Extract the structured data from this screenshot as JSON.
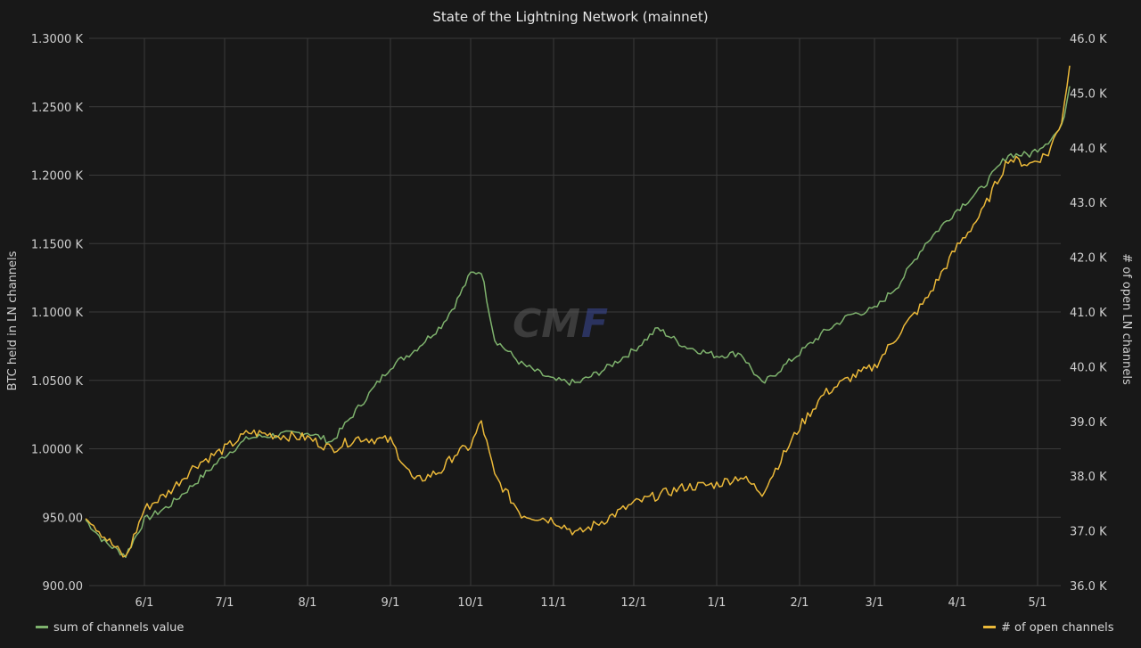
{
  "chart_data": {
    "type": "line",
    "title": "State of the Lightning Network (mainnet)",
    "x_ticks": [
      "6/1",
      "7/1",
      "8/1",
      "9/1",
      "10/1",
      "11/1",
      "12/1",
      "1/1",
      "2/1",
      "3/1",
      "4/1",
      "5/1"
    ],
    "x_range": [
      "5/10",
      "5/17"
    ],
    "y_left": {
      "label": "BTC held in LN channels",
      "ticks": [
        "900.00",
        "950.00",
        "1.0000 K",
        "1.0500 K",
        "1.1000 K",
        "1.1500 K",
        "1.2000 K",
        "1.2500 K",
        "1.3000 K"
      ],
      "range": [
        900,
        1300
      ]
    },
    "y_right": {
      "label": "# of open LN channels",
      "ticks": [
        "36.0 K",
        "37.0 K",
        "38.0 K",
        "39.0 K",
        "40.0 K",
        "41.0 K",
        "42.0 K",
        "43.0 K",
        "44.0 K",
        "45.0 K",
        "46.0 K"
      ],
      "range": [
        36000,
        46000
      ]
    },
    "legend_placement": "bottom",
    "series": [
      {
        "name": "sum of channels value",
        "axis": "left",
        "color": "#7eb26d",
        "x": [
          "5/10",
          "5/17",
          "5/25",
          "6/1",
          "6/10",
          "6/20",
          "7/1",
          "7/10",
          "7/20",
          "8/1",
          "8/10",
          "8/20",
          "9/1",
          "9/10",
          "9/20",
          "9/25",
          "10/1",
          "10/5",
          "10/10",
          "10/20",
          "11/1",
          "11/10",
          "11/20",
          "12/1",
          "12/10",
          "12/20",
          "1/1",
          "1/10",
          "1/18",
          "2/1",
          "2/10",
          "2/20",
          "3/1",
          "3/10",
          "3/20",
          "4/1",
          "4/10",
          "4/20",
          "4/28",
          "5/5",
          "5/10",
          "5/13"
        ],
        "values": [
          948,
          932,
          922,
          948,
          958,
          975,
          995,
          1008,
          1010,
          1012,
          1005,
          1030,
          1060,
          1072,
          1090,
          1105,
          1128,
          1130,
          1080,
          1062,
          1050,
          1048,
          1058,
          1072,
          1088,
          1075,
          1068,
          1070,
          1047,
          1070,
          1085,
          1098,
          1102,
          1120,
          1150,
          1175,
          1190,
          1215,
          1215,
          1225,
          1235,
          1265
        ]
      },
      {
        "name": "# of open channels",
        "axis": "right",
        "color": "#eab839",
        "x": [
          "5/10",
          "5/17",
          "5/25",
          "6/1",
          "6/10",
          "6/20",
          "7/1",
          "7/10",
          "7/20",
          "8/1",
          "8/10",
          "8/20",
          "9/1",
          "9/10",
          "9/20",
          "9/25",
          "10/1",
          "10/5",
          "10/10",
          "10/20",
          "11/1",
          "11/10",
          "11/20",
          "12/1",
          "12/10",
          "12/20",
          "1/1",
          "1/10",
          "1/18",
          "2/1",
          "2/10",
          "2/20",
          "3/1",
          "3/10",
          "3/20",
          "4/1",
          "4/10",
          "4/20",
          "4/28",
          "5/5",
          "5/10",
          "5/13"
        ],
        "values": [
          37300,
          36900,
          36500,
          37400,
          37700,
          38200,
          38500,
          38800,
          38750,
          38700,
          38500,
          38700,
          38650,
          37900,
          38100,
          38400,
          38550,
          39000,
          38000,
          37300,
          37200,
          36950,
          37200,
          37500,
          37650,
          37800,
          37850,
          38000,
          37700,
          38900,
          39500,
          39800,
          40000,
          40600,
          41200,
          42200,
          42800,
          43800,
          43700,
          43900,
          44500,
          45500
        ]
      }
    ]
  },
  "watermark": {
    "part1": "CM",
    "part2": "F"
  }
}
